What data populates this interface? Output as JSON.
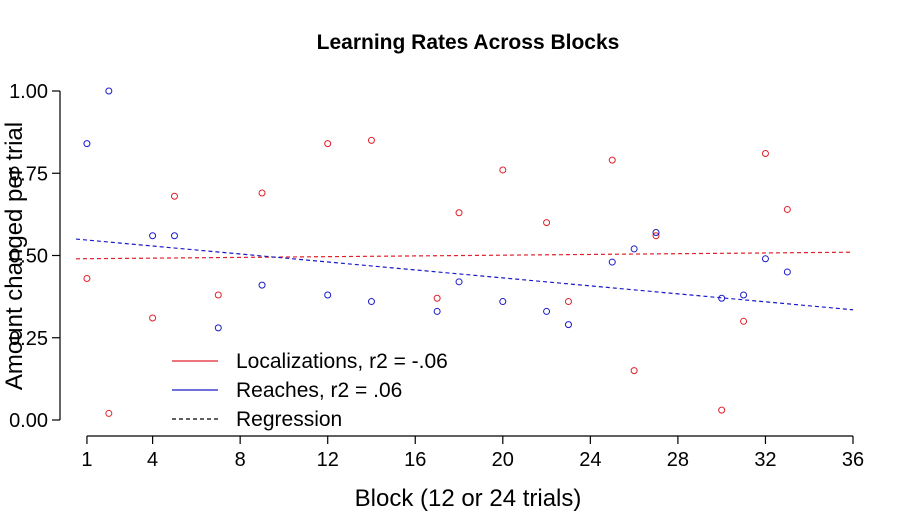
{
  "chart_data": {
    "type": "scatter",
    "title": "Learning Rates Across Blocks",
    "xlabel": "Block (12 or 24 trials)",
    "ylabel": "Amount changed per trial",
    "xlim": [
      0.5,
      36
    ],
    "ylim": [
      0,
      1
    ],
    "x_ticks": [
      1,
      4,
      8,
      12,
      16,
      20,
      24,
      28,
      32,
      36
    ],
    "y_ticks": [
      0.0,
      0.25,
      0.5,
      0.75,
      1.0
    ],
    "x_tick_labels": [
      "1",
      "4",
      "8",
      "12",
      "16",
      "20",
      "24",
      "28",
      "32",
      "36"
    ],
    "y_tick_labels": [
      "0.00",
      "0.25",
      "0.50",
      "0.75",
      "1.00"
    ],
    "grid": false,
    "legend_position": "bottom-left",
    "legend": [
      {
        "label": "Localizations, r2 = -.06",
        "color": "#e0202a",
        "style": "solid"
      },
      {
        "label": "Reaches, r2 = .06",
        "color": "#1a1ac8",
        "style": "solid"
      },
      {
        "label": "Regression",
        "color": "#000000",
        "style": "dashed"
      }
    ],
    "series": [
      {
        "color": "#e0202a",
        "marker": "open-circle",
        "points": [
          [
            1,
            0.43
          ],
          [
            2,
            0.02
          ],
          [
            4,
            0.31
          ],
          [
            5,
            0.68
          ],
          [
            7,
            0.38
          ],
          [
            9,
            0.69
          ],
          [
            12,
            0.84
          ],
          [
            14,
            0.85
          ],
          [
            17,
            0.37
          ],
          [
            18,
            0.63
          ],
          [
            20,
            0.76
          ],
          [
            22,
            0.6
          ],
          [
            23,
            0.36
          ],
          [
            25,
            0.79
          ],
          [
            26,
            0.15
          ],
          [
            27,
            0.56
          ],
          [
            30,
            0.03
          ],
          [
            31,
            0.3
          ],
          [
            32,
            0.81
          ],
          [
            33,
            0.64
          ]
        ],
        "regression": {
          "x": [
            0.5,
            36
          ],
          "y": [
            0.49,
            0.51
          ]
        }
      },
      {
        "color": "#1a1ac8",
        "marker": "open-circle",
        "points": [
          [
            1,
            0.84
          ],
          [
            2,
            1.0
          ],
          [
            4,
            0.56
          ],
          [
            5,
            0.56
          ],
          [
            7,
            0.28
          ],
          [
            9,
            0.41
          ],
          [
            12,
            0.38
          ],
          [
            14,
            0.36
          ],
          [
            17,
            0.33
          ],
          [
            18,
            0.42
          ],
          [
            20,
            0.36
          ],
          [
            22,
            0.33
          ],
          [
            23,
            0.29
          ],
          [
            25,
            0.48
          ],
          [
            26,
            0.52
          ],
          [
            27,
            0.57
          ],
          [
            30,
            0.37
          ],
          [
            31,
            0.38
          ],
          [
            32,
            0.49
          ],
          [
            33,
            0.45
          ]
        ],
        "regression": {
          "x": [
            0.5,
            36
          ],
          "y": [
            0.55,
            0.335
          ]
        }
      }
    ]
  }
}
